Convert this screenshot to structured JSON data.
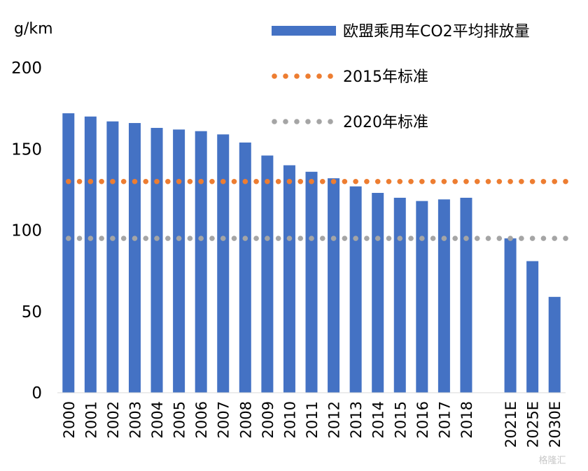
{
  "chart_data": {
    "type": "bar",
    "ylabel": "g/km",
    "ylim": [
      0,
      200
    ],
    "yticks": [
      0,
      50,
      100,
      150,
      200
    ],
    "grid": false,
    "legend_position": "top-right",
    "categories": [
      "2000",
      "2001",
      "2002",
      "2003",
      "2004",
      "2005",
      "2006",
      "2007",
      "2008",
      "2009",
      "2010",
      "2011",
      "2012",
      "2013",
      "2014",
      "2015",
      "2016",
      "2017",
      "2018",
      "",
      "2021E",
      "2025E",
      "2030E"
    ],
    "series": [
      {
        "name": "欧盟乘用车CO2平均排放量",
        "type": "bar",
        "color": "#4472c4",
        "values": [
          172,
          170,
          167,
          166,
          163,
          162,
          161,
          159,
          154,
          146,
          140,
          136,
          132,
          127,
          123,
          120,
          118,
          119,
          120,
          null,
          95,
          81,
          59
        ]
      },
      {
        "name": "2015年标准",
        "type": "dotted-line",
        "color": "#ed7d31",
        "value": 130
      },
      {
        "name": "2020年标准",
        "type": "dotted-line",
        "color": "#a5a5a5",
        "value": 95
      }
    ]
  },
  "watermark": "格隆汇"
}
